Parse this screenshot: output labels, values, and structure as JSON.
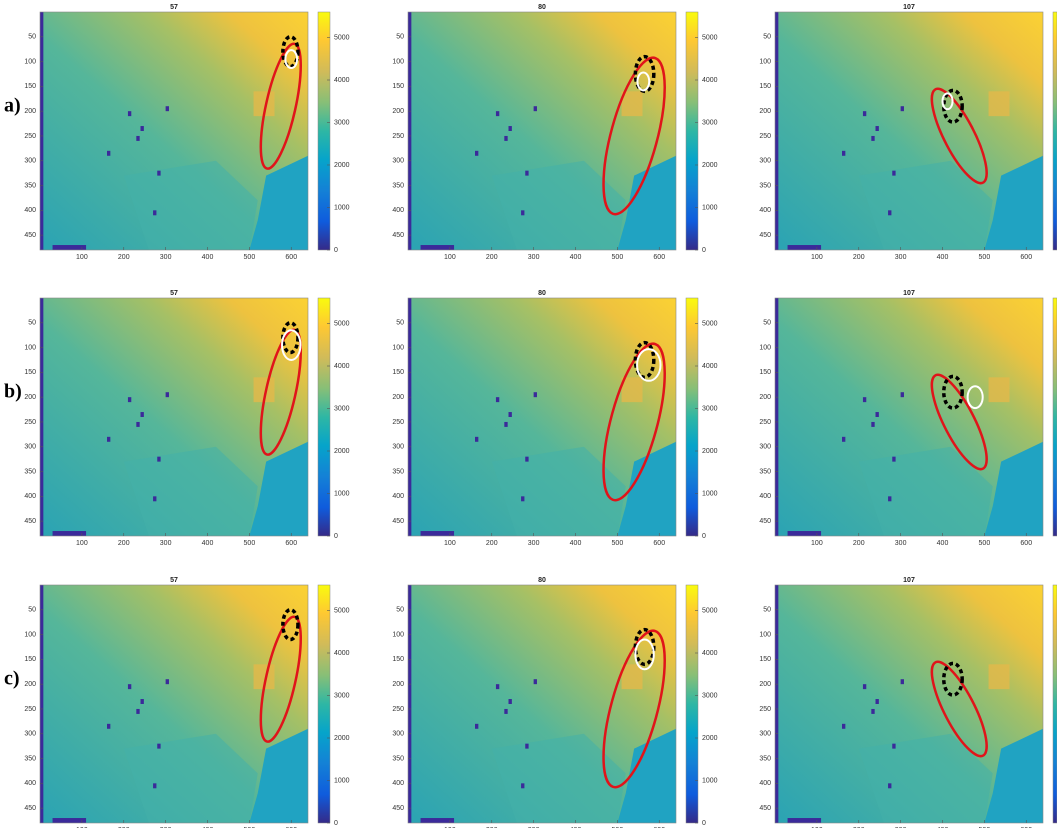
{
  "rows": [
    {
      "label": "a)",
      "panels": [
        {
          "title": "57"
        },
        {
          "title": "80"
        },
        {
          "title": "107"
        }
      ]
    },
    {
      "label": "b)",
      "panels": [
        {
          "title": "57"
        },
        {
          "title": "80"
        },
        {
          "title": "107"
        }
      ]
    },
    {
      "label": "c)",
      "panels": [
        {
          "title": "57"
        },
        {
          "title": "80"
        },
        {
          "title": "107"
        }
      ]
    }
  ],
  "xticks": [
    100,
    200,
    300,
    400,
    500,
    600
  ],
  "yticks": [
    50,
    100,
    150,
    200,
    250,
    300,
    350,
    400,
    450
  ],
  "colorbar_ticks": [
    0,
    1000,
    2000,
    3000,
    4000,
    5000
  ]
}
